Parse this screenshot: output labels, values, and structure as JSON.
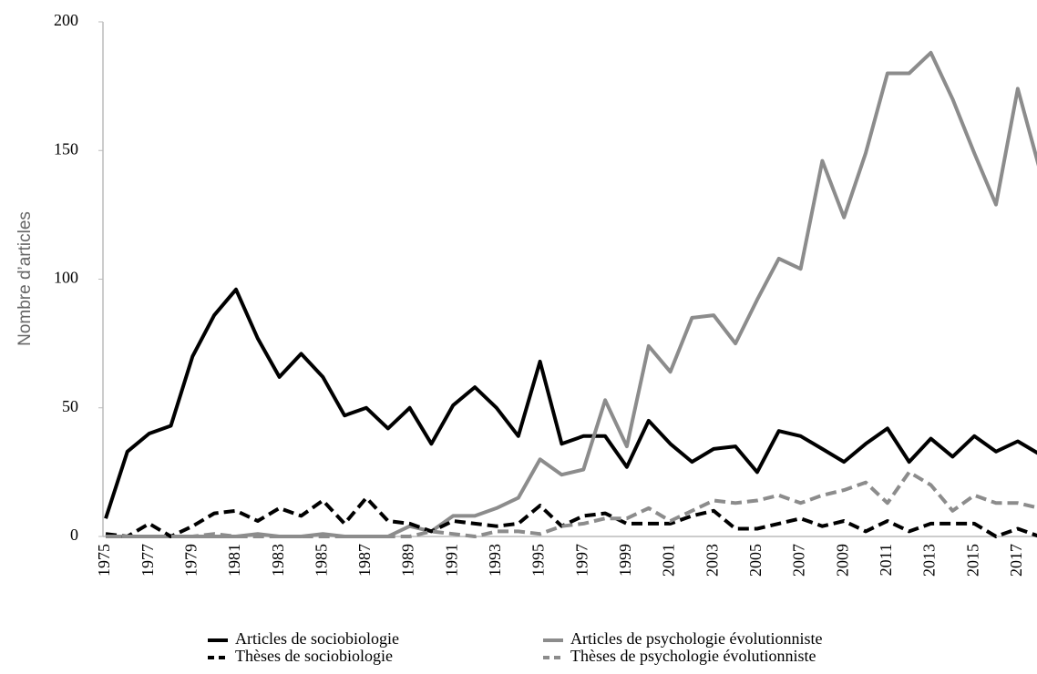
{
  "chart_data": {
    "type": "line",
    "y_label": "Nombre d’articles",
    "categories": [
      "1975",
      null,
      "1977",
      null,
      "1979",
      null,
      "1981",
      null,
      "1983",
      null,
      "1985",
      null,
      "1987",
      null,
      "1989",
      null,
      "1991",
      null,
      "1993",
      null,
      "1995",
      null,
      "1997",
      null,
      "1999",
      null,
      "2001",
      null,
      "2003",
      null,
      "2005",
      null,
      "2007",
      null,
      "2009",
      null,
      "2011",
      null,
      "2013",
      null,
      "2015",
      null,
      "2017",
      null
    ],
    "ylim": [
      0,
      200
    ],
    "yticks": [
      0,
      50,
      100,
      150,
      200
    ],
    "grid": false,
    "series": [
      {
        "name": "Articles de sociobiologie",
        "color": "#000000",
        "dash": false,
        "values": [
          7,
          33,
          40,
          43,
          70,
          86,
          96,
          77,
          62,
          71,
          62,
          47,
          50,
          42,
          50,
          36,
          51,
          58,
          50,
          39,
          68,
          36,
          39,
          39,
          27,
          45,
          36,
          29,
          34,
          35,
          25,
          41,
          39,
          34,
          29,
          36,
          42,
          29,
          38,
          31,
          39,
          33,
          37,
          32
        ]
      },
      {
        "name": "Articles de psychologie évolutionniste",
        "color": "#8c8c8c",
        "dash": false,
        "values": [
          0,
          0,
          0,
          0,
          0,
          0,
          0,
          1,
          0,
          0,
          1,
          0,
          0,
          0,
          4,
          2,
          8,
          8,
          11,
          15,
          30,
          24,
          26,
          53,
          35,
          74,
          64,
          85,
          86,
          75,
          92,
          108,
          104,
          146,
          124,
          149,
          180,
          180,
          188,
          170,
          149,
          129,
          174,
          143
        ]
      },
      {
        "name": "Thèses de sociobiologie",
        "color": "#000000",
        "dash": true,
        "values": [
          1,
          0,
          5,
          0,
          4,
          9,
          10,
          6,
          11,
          8,
          14,
          5,
          15,
          6,
          5,
          2,
          6,
          5,
          4,
          5,
          12,
          4,
          8,
          9,
          5,
          5,
          5,
          8,
          10,
          3,
          3,
          5,
          7,
          4,
          6,
          2,
          6,
          2,
          5,
          5,
          5,
          0,
          3,
          0
        ]
      },
      {
        "name": "Thèses de psychologie évolutionniste",
        "color": "#8c8c8c",
        "dash": true,
        "values": [
          0,
          0,
          0,
          0,
          0,
          1,
          0,
          0,
          0,
          0,
          0,
          0,
          0,
          0,
          0,
          2,
          1,
          0,
          2,
          2,
          1,
          4,
          5,
          7,
          7,
          11,
          6,
          10,
          14,
          13,
          14,
          16,
          13,
          16,
          18,
          21,
          13,
          25,
          20,
          10,
          16,
          13,
          13,
          11
        ]
      }
    ]
  }
}
